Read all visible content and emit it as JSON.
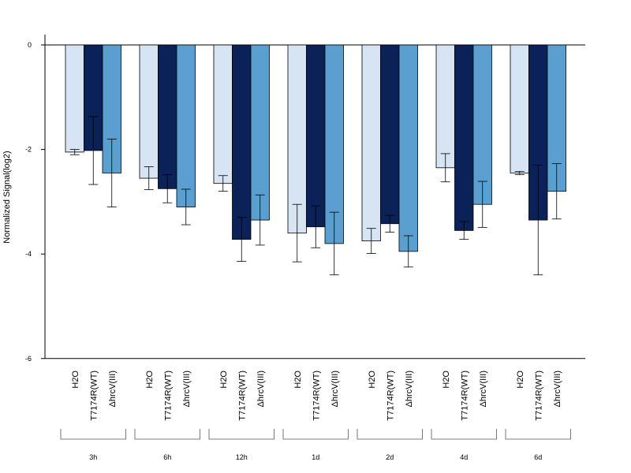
{
  "chart_data": {
    "type": "bar",
    "title": "",
    "xlabel": "",
    "ylabel": "Normalized Signal(log2)",
    "ylim": [
      -6,
      0.2
    ],
    "yticks": [
      0,
      -2,
      -4,
      -6
    ],
    "yticklabels": [
      "0",
      "-2",
      "-4",
      "-6"
    ],
    "groups": [
      "3h",
      "6h",
      "12h",
      "1d",
      "2d",
      "4d",
      "6d"
    ],
    "bar_labels": [
      "H2O",
      "T7174R(WT)",
      "ΔhrcV(III)"
    ],
    "series": [
      {
        "key": "h2o",
        "color": "#d6e4f3",
        "values": [
          -2.05,
          -2.55,
          -2.65,
          -3.6,
          -3.75,
          -2.35,
          -2.45
        ],
        "errors": [
          0.05,
          0.22,
          0.15,
          0.55,
          0.24,
          0.27,
          0.03
        ]
      },
      {
        "key": "wt",
        "color": "#0a2257",
        "values": [
          -2.02,
          -2.75,
          -3.72,
          -3.48,
          -3.42,
          -3.55,
          -3.35
        ],
        "errors": [
          0.65,
          0.27,
          0.42,
          0.4,
          0.16,
          0.17,
          1.05
        ]
      },
      {
        "key": "hrcv",
        "color": "#5a9fcf",
        "values": [
          -2.45,
          -3.1,
          -3.35,
          -3.8,
          -3.95,
          -3.05,
          -2.8
        ],
        "errors": [
          0.65,
          0.34,
          0.48,
          0.6,
          0.3,
          0.44,
          0.53
        ]
      }
    ],
    "grid": false,
    "legend": "none"
  }
}
